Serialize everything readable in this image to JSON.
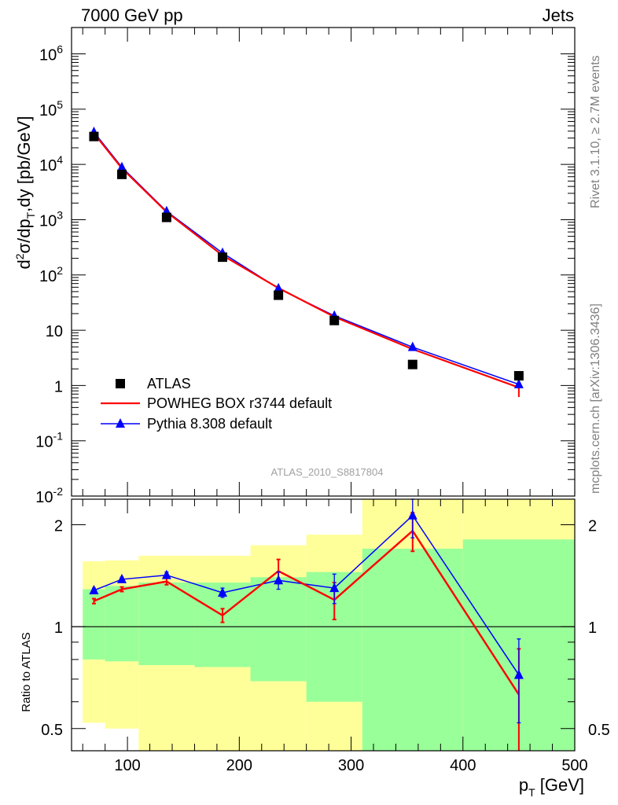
{
  "header": {
    "left": "7000 GeV pp",
    "right": "Jets"
  },
  "side_labels": {
    "rivet": "Rivet 3.1.10, ≥ 2.7M events",
    "mcplots": "mcplots.cern.ch [arXiv:1306.3436]"
  },
  "analysis_id": "ATLAS_2010_S8817804",
  "colors": {
    "data": "#000000",
    "powheg": "#ff0000",
    "pythia": "#0000ff",
    "band_outer": "#ffff99",
    "band_inner": "#99ff99"
  },
  "chart_data": [
    {
      "type": "scatter",
      "panel": "main",
      "ylabel": "d²σ/dp_T,dy [pb/GeV]",
      "yscale": "log",
      "ylim": [
        0.01,
        3000000
      ],
      "xlim": [
        50,
        500
      ],
      "ytick_labels": [
        "10^-2",
        "10^-1",
        "1",
        "10",
        "10^2",
        "10^3",
        "10^4",
        "10^5",
        "10^6"
      ],
      "legend": [
        "ATLAS",
        "POWHEG BOX r3744 default",
        "Pythia 8.308 default"
      ],
      "legend_position": "bottom-left",
      "x_bins": [
        [
          60,
          80
        ],
        [
          80,
          110
        ],
        [
          110,
          160
        ],
        [
          160,
          210
        ],
        [
          210,
          260
        ],
        [
          260,
          310
        ],
        [
          310,
          400
        ],
        [
          400,
          500
        ]
      ],
      "series": [
        {
          "name": "ATLAS",
          "marker": "square",
          "x": [
            70,
            95,
            135,
            185,
            235,
            285,
            355,
            450
          ],
          "y": [
            32000,
            6600,
            1100,
            210,
            43,
            15,
            2.4,
            1.5
          ]
        },
        {
          "name": "POWHEG BOX r3744 default",
          "marker": "line",
          "x": [
            70,
            95,
            135,
            185,
            235,
            285,
            355,
            450
          ],
          "y": [
            36500,
            8500,
            1380,
            226,
            58,
            17.5,
            4.55,
            0.92
          ],
          "yerr": [
            0,
            0,
            0,
            0,
            0,
            0,
            0.3,
            0.3
          ]
        },
        {
          "name": "Pythia 8.308 default",
          "marker": "triangle",
          "x": [
            70,
            95,
            135,
            185,
            235,
            285,
            355,
            450
          ],
          "y": [
            38500,
            8900,
            1420,
            250,
            57,
            18.3,
            4.95,
            1.05
          ]
        }
      ]
    },
    {
      "type": "line",
      "panel": "ratio",
      "ylabel": "Ratio to ATLAS",
      "xlabel": "p_T [GeV]",
      "yscale": "log",
      "ylim": [
        0.43,
        2.38
      ],
      "xlim": [
        50,
        500
      ],
      "yticks": [
        0.5,
        1,
        2
      ],
      "xticks": [
        100,
        200,
        300,
        400,
        500
      ],
      "x_bins": [
        [
          60,
          80
        ],
        [
          80,
          110
        ],
        [
          110,
          160
        ],
        [
          160,
          210
        ],
        [
          210,
          260
        ],
        [
          260,
          310
        ],
        [
          310,
          400
        ],
        [
          400,
          500
        ]
      ],
      "band_outer": [
        [
          0.52,
          1.56
        ],
        [
          0.5,
          1.57
        ],
        [
          0.43,
          1.62
        ],
        [
          0.42,
          1.62
        ],
        [
          0.38,
          1.74
        ],
        [
          0.38,
          1.87
        ],
        [
          0.38,
          2.5
        ],
        [
          0.38,
          2.5
        ]
      ],
      "band_inner": [
        [
          0.8,
          1.29
        ],
        [
          0.79,
          1.32
        ],
        [
          0.77,
          1.35
        ],
        [
          0.76,
          1.35
        ],
        [
          0.69,
          1.4
        ],
        [
          0.6,
          1.45
        ],
        [
          0.38,
          1.7
        ],
        [
          0.38,
          1.81
        ]
      ],
      "reference": 1,
      "series": [
        {
          "name": "POWHEG BOX r3744 default",
          "marker": "line",
          "x": [
            70,
            95,
            135,
            185,
            235,
            285,
            355,
            450
          ],
          "y": [
            1.19,
            1.29,
            1.36,
            1.08,
            1.46,
            1.2,
            1.92,
            0.63
          ],
          "yerr": [
            0.02,
            0.02,
            0.03,
            0.05,
            0.12,
            0.15,
            0.25,
            0.23
          ]
        },
        {
          "name": "Pythia 8.308 default",
          "marker": "triangle",
          "x": [
            70,
            95,
            135,
            185,
            235,
            285,
            355,
            450
          ],
          "y": [
            1.28,
            1.38,
            1.42,
            1.26,
            1.37,
            1.3,
            2.13,
            0.72
          ],
          "yerr": [
            0.02,
            0.02,
            0.03,
            0.04,
            0.08,
            0.13,
            0.3,
            0.2
          ]
        }
      ]
    }
  ]
}
